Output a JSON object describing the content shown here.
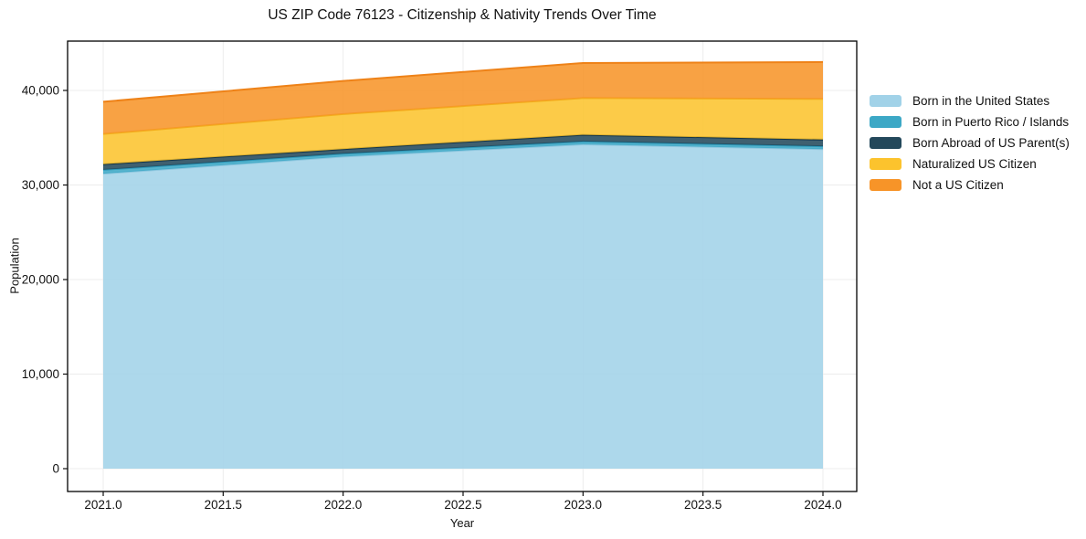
{
  "title": "US ZIP Code 76123 - Citizenship & Nativity Trends Over Time",
  "axes": {
    "x_label": "Year",
    "y_label": "Population",
    "x_ticks": [
      {
        "value": 2021.0,
        "label": "2021.0"
      },
      {
        "value": 2021.5,
        "label": "2021.5"
      },
      {
        "value": 2022.0,
        "label": "2022.0"
      },
      {
        "value": 2022.5,
        "label": "2022.5"
      },
      {
        "value": 2023.0,
        "label": "2023.0"
      },
      {
        "value": 2023.5,
        "label": "2023.5"
      },
      {
        "value": 2024.0,
        "label": "2024.0"
      }
    ],
    "y_ticks": [
      {
        "value": 0,
        "label": "0"
      },
      {
        "value": 10000,
        "label": "10,000"
      },
      {
        "value": 20000,
        "label": "20,000"
      },
      {
        "value": 30000,
        "label": "30,000"
      },
      {
        "value": 40000,
        "label": "40,000"
      }
    ]
  },
  "chart_data": {
    "type": "area",
    "stacked": true,
    "title": "US ZIP Code 76123 - Citizenship & Nativity Trends Over Time",
    "xlabel": "Year",
    "ylabel": "Population",
    "x": [
      2021,
      2022,
      2023,
      2024
    ],
    "series": [
      {
        "name": "Born in the United States",
        "values": [
          31200,
          33000,
          34300,
          33800
        ],
        "color": "#A1D2E8",
        "line_color": "#8FC7DF"
      },
      {
        "name": "Born in Puerto Rico / Islands",
        "values": [
          400,
          300,
          300,
          300
        ],
        "color": "#3CA8C6",
        "line_color": "#2E9ABB"
      },
      {
        "name": "Born Abroad of US Parent(s)",
        "values": [
          600,
          500,
          700,
          700
        ],
        "color": "#23485B",
        "line_color": "#15364A"
      },
      {
        "name": "Naturalized US Citizen",
        "values": [
          3200,
          3700,
          3900,
          4300
        ],
        "color": "#FCC32D",
        "line_color": "#F2AE1C"
      },
      {
        "name": "Not a US Citizen",
        "values": [
          3400,
          3500,
          3700,
          3900
        ],
        "color": "#F79428",
        "line_color": "#EE8218"
      }
    ],
    "totals": [
      38800,
      41000,
      42900,
      43000
    ],
    "xlim": [
      2020.85,
      2024.14
    ],
    "ylim": [
      -2400,
      45200
    ],
    "grid": true,
    "grid_color": "#ECECEC",
    "frame_color": "#000000",
    "background_color": "#FFFFFF",
    "fill_opacity": 0.87,
    "legend_position": "right"
  }
}
